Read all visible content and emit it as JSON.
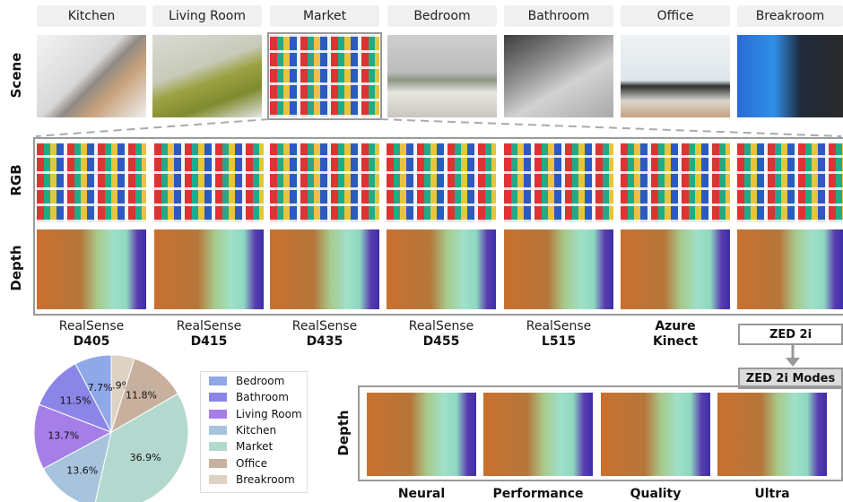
{
  "scene_tabs": [
    "Kitchen",
    "Living Room",
    "Market",
    "Bedroom",
    "Bathroom",
    "Office",
    "Breakroom"
  ],
  "row_labels": {
    "scene": "Scene",
    "rgb": "RGB",
    "depth": "Depth",
    "depth_modes": "Depth"
  },
  "cameras": [
    {
      "line1": "RealSense",
      "line2": "D405"
    },
    {
      "line1": "RealSense",
      "line2": "D415"
    },
    {
      "line1": "RealSense",
      "line2": "D435"
    },
    {
      "line1": "RealSense",
      "line2": "D455"
    },
    {
      "line1": "RealSense",
      "line2": "L515"
    },
    {
      "line1": "",
      "line2": "Azure Kinect"
    }
  ],
  "zed": {
    "name": "ZED 2i",
    "modes_title": "ZED 2i Modes",
    "modes": [
      "Neural",
      "Performance",
      "Quality",
      "Ultra"
    ]
  },
  "colors": {
    "bedroom": "#8fa8e8",
    "bathroom": "#8a85e6",
    "living_room": "#a67ee8",
    "kitchen": "#a7c4dc",
    "market": "#b3d9cf",
    "office": "#c8b09e",
    "breakroom": "#ddd2c4"
  },
  "chart_data": {
    "type": "pie",
    "categories": [
      "Bedroom",
      "Bathroom",
      "Living Room",
      "Kitchen",
      "Market",
      "Office",
      "Breakroom"
    ],
    "values": [
      7.7,
      11.5,
      13.7,
      13.6,
      36.9,
      11.8,
      4.9
    ],
    "labels": [
      "7.7%",
      "11.5%",
      "13.7%",
      "13.6%",
      "36.9%",
      "11.8%",
      "4.9%"
    ],
    "legend_placement": "right"
  }
}
